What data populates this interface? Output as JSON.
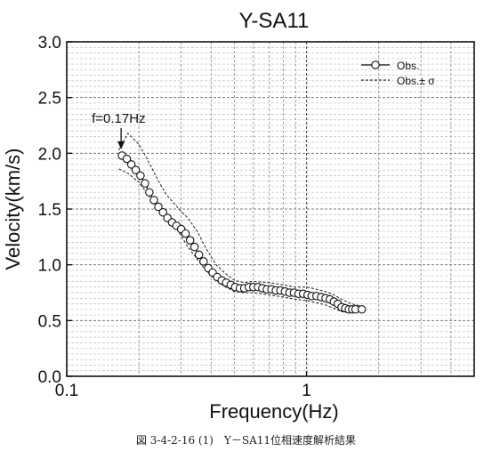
{
  "chart_data": {
    "type": "scatter",
    "title": "Y-SA11",
    "xlabel": "Frequency(Hz)",
    "ylabel": "Velocity(km/s)",
    "xscale": "log",
    "xlim": [
      0.1,
      5
    ],
    "ylim": [
      0.0,
      3.0
    ],
    "x_ticks": [
      0.1,
      1
    ],
    "x_tick_labels": [
      "0.1",
      "1"
    ],
    "y_ticks": [
      0.0,
      0.5,
      1.0,
      1.5,
      2.0,
      2.5,
      3.0
    ],
    "y_tick_labels": [
      "0.0",
      "0.5",
      "1.0",
      "1.5",
      "2.0",
      "2.5",
      "3.0"
    ],
    "grid": true,
    "legend_position": "top-right",
    "series": [
      {
        "name": "Obs.",
        "style": "line-with-open-circles",
        "x": [
          0.17,
          0.178,
          0.186,
          0.194,
          0.203,
          0.212,
          0.221,
          0.231,
          0.241,
          0.252,
          0.263,
          0.275,
          0.287,
          0.3,
          0.313,
          0.327,
          0.341,
          0.356,
          0.372,
          0.389,
          0.406,
          0.424,
          0.443,
          0.462,
          0.483,
          0.504,
          0.527,
          0.55,
          0.575,
          0.6,
          0.627,
          0.654,
          0.683,
          0.714,
          0.745,
          0.778,
          0.813,
          0.849,
          0.886,
          0.926,
          0.967,
          1.01,
          1.05,
          1.1,
          1.15,
          1.2,
          1.25,
          1.3,
          1.35,
          1.4,
          1.45,
          1.5,
          1.55,
          1.6,
          1.7
        ],
        "y": [
          1.98,
          1.95,
          1.9,
          1.85,
          1.8,
          1.73,
          1.65,
          1.58,
          1.52,
          1.47,
          1.42,
          1.38,
          1.35,
          1.32,
          1.28,
          1.22,
          1.16,
          1.09,
          1.03,
          0.97,
          0.93,
          0.89,
          0.86,
          0.84,
          0.82,
          0.8,
          0.79,
          0.79,
          0.8,
          0.8,
          0.8,
          0.79,
          0.78,
          0.78,
          0.77,
          0.77,
          0.76,
          0.75,
          0.75,
          0.74,
          0.74,
          0.73,
          0.72,
          0.72,
          0.71,
          0.7,
          0.69,
          0.67,
          0.65,
          0.62,
          0.61,
          0.6,
          0.6,
          0.6,
          0.6
        ]
      },
      {
        "name": "Obs.± σ",
        "style": "dashed-band",
        "x": [
          0.165,
          0.18,
          0.2,
          0.22,
          0.24,
          0.26,
          0.28,
          0.3,
          0.32,
          0.35,
          0.38,
          0.42,
          0.46,
          0.5,
          0.55,
          0.6,
          0.7,
          0.8,
          0.9,
          1.0,
          1.1,
          1.2,
          1.3,
          1.4,
          1.5,
          1.6,
          1.7
        ],
        "upper": [
          2.03,
          2.18,
          2.08,
          1.92,
          1.76,
          1.63,
          1.55,
          1.48,
          1.42,
          1.3,
          1.15,
          1.0,
          0.92,
          0.86,
          0.84,
          0.85,
          0.84,
          0.82,
          0.8,
          0.8,
          0.78,
          0.76,
          0.73,
          0.69,
          0.66,
          0.64,
          0.63
        ],
        "lower": [
          1.86,
          1.82,
          1.74,
          1.62,
          1.52,
          1.44,
          1.36,
          1.26,
          1.16,
          1.05,
          0.95,
          0.86,
          0.8,
          0.76,
          0.75,
          0.75,
          0.73,
          0.71,
          0.69,
          0.68,
          0.66,
          0.64,
          0.61,
          0.58,
          0.57,
          0.57,
          0.58
        ]
      }
    ],
    "annotations": [
      {
        "text": "f=0.17Hz",
        "x": 0.17,
        "y": 1.98,
        "arrow": true
      }
    ]
  },
  "caption": "図 3-4-2-16 (1)　Y－SA11位相速度解析結果"
}
